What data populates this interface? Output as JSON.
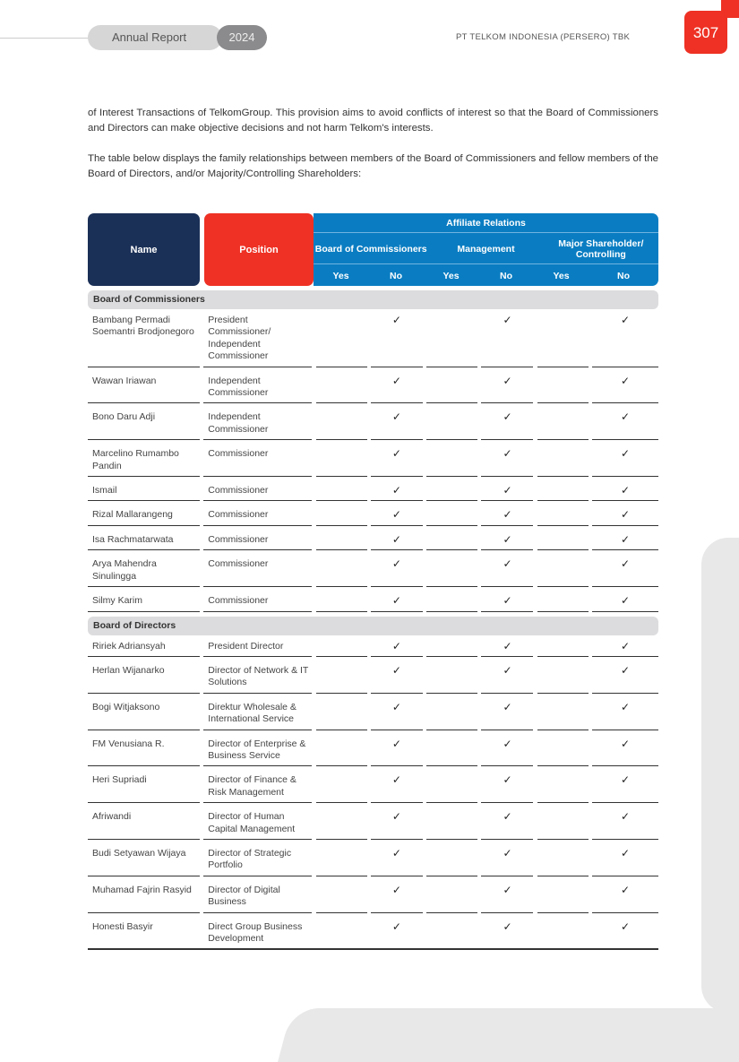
{
  "header": {
    "report_label": "Annual Report",
    "year": "2024",
    "company": "PT TELKOM INDONESIA (PERSERO) TBK",
    "page_number": "307"
  },
  "body": {
    "para1": "of Interest Transactions of TelkomGroup. This provision aims to avoid conflicts of interest so that the Board of Commissioners and Directors can make objective decisions and not harm Telkom's interests.",
    "para2": "The table below displays the family relationships between members of the Board of Commissioners and fellow members of the Board of Directors, and/or Majority/Controlling Shareholders:"
  },
  "table": {
    "headers": {
      "name": "Name",
      "position": "Position",
      "affiliate": "Affiliate Relations",
      "groups": [
        "Board of Commissioners",
        "Management",
        "Major Shareholder/ Controlling"
      ],
      "yes": "Yes",
      "no": "No"
    },
    "check_symbol": "✓",
    "sections": [
      {
        "title": "Board of Commissioners",
        "rows": [
          {
            "name": "Bambang Permadi Soemantri Brodjonegoro",
            "position": "President Commissioner/ Independent Commissioner",
            "values": [
              "",
              "✓",
              "",
              "✓",
              "",
              "✓"
            ]
          },
          {
            "name": "Wawan Iriawan",
            "position": "Independent Commissioner",
            "values": [
              "",
              "✓",
              "",
              "✓",
              "",
              "✓"
            ]
          },
          {
            "name": "Bono Daru Adji",
            "position": "Independent Commissioner",
            "values": [
              "",
              "✓",
              "",
              "✓",
              "",
              "✓"
            ]
          },
          {
            "name": "Marcelino Rumambo Pandin",
            "position": "Commissioner",
            "values": [
              "",
              "✓",
              "",
              "✓",
              "",
              "✓"
            ]
          },
          {
            "name": "Ismail",
            "position": "Commissioner",
            "values": [
              "",
              "✓",
              "",
              "✓",
              "",
              "✓"
            ]
          },
          {
            "name": "Rizal Mallarangeng",
            "position": "Commissioner",
            "values": [
              "",
              "✓",
              "",
              "✓",
              "",
              "✓"
            ]
          },
          {
            "name": "Isa Rachmatarwata",
            "position": "Commissioner",
            "values": [
              "",
              "✓",
              "",
              "✓",
              "",
              "✓"
            ]
          },
          {
            "name": "Arya Mahendra Sinulingga",
            "position": "Commissioner",
            "values": [
              "",
              "✓",
              "",
              "✓",
              "",
              "✓"
            ]
          },
          {
            "name": "Silmy Karim",
            "position": "Commissioner",
            "values": [
              "",
              "✓",
              "",
              "✓",
              "",
              "✓"
            ]
          }
        ]
      },
      {
        "title": "Board of Directors",
        "rows": [
          {
            "name": "Ririek Adriansyah",
            "position": "President Director",
            "values": [
              "",
              "✓",
              "",
              "✓",
              "",
              "✓"
            ]
          },
          {
            "name": "Herlan Wijanarko",
            "position": "Director of Network & IT Solutions",
            "values": [
              "",
              "✓",
              "",
              "✓",
              "",
              "✓"
            ]
          },
          {
            "name": "Bogi Witjaksono",
            "position": "Direktur Wholesale & International Service",
            "values": [
              "",
              "✓",
              "",
              "✓",
              "",
              "✓"
            ]
          },
          {
            "name": "FM Venusiana R.",
            "position": "Director of Enterprise & Business Service",
            "values": [
              "",
              "✓",
              "",
              "✓",
              "",
              "✓"
            ]
          },
          {
            "name": "Heri Supriadi",
            "position": "Director of Finance & Risk Management",
            "values": [
              "",
              "✓",
              "",
              "✓",
              "",
              "✓"
            ]
          },
          {
            "name": "Afriwandi",
            "position": "Director of Human Capital Management",
            "values": [
              "",
              "✓",
              "",
              "✓",
              "",
              "✓"
            ]
          },
          {
            "name": "Budi Setyawan Wijaya",
            "position": "Director of Strategic Portfolio",
            "values": [
              "",
              "✓",
              "",
              "✓",
              "",
              "✓"
            ]
          },
          {
            "name": "Muhamad Fajrin Rasyid",
            "position": "Director of Digital Business",
            "values": [
              "",
              "✓",
              "",
              "✓",
              "",
              "✓"
            ]
          },
          {
            "name": "Honesti Basyir",
            "position": "Direct Group Business Development",
            "values": [
              "",
              "✓",
              "",
              "✓",
              "",
              "✓"
            ]
          }
        ]
      }
    ]
  },
  "colors": {
    "navy": "#1b3057",
    "red": "#ee3124",
    "blue": "#0a7dc2",
    "section_gray": "#dcdcde"
  }
}
